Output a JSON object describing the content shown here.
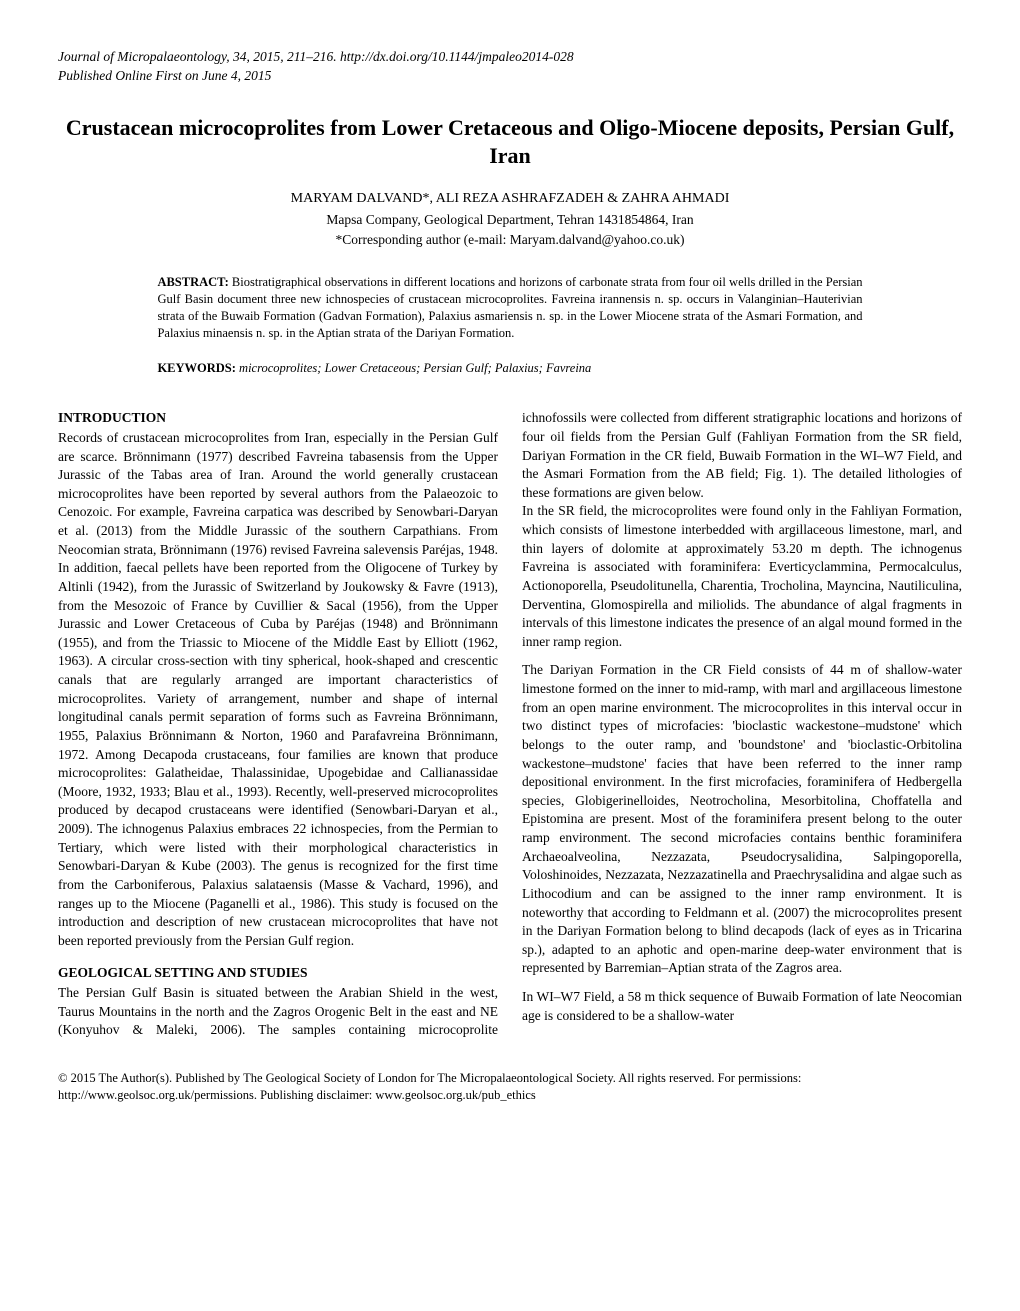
{
  "header": {
    "line1": "Journal of Micropalaeontology, 34, 2015, 211–216. http://dx.doi.org/10.1144/jmpaleo2014-028",
    "line2": "Published Online First on June 4, 2015"
  },
  "title": "Crustacean microcoprolites from Lower Cretaceous and Oligo-Miocene deposits, Persian Gulf, Iran",
  "authors": "MARYAM DALVAND*, ALI REZA ASHRAFZADEH & ZAHRA AHMADI",
  "affiliation": "Mapsa Company, Geological Department, Tehran 1431854864, Iran",
  "corresponding": "*Corresponding author (e-mail: Maryam.dalvand@yahoo.co.uk)",
  "abstract_label": "ABSTRACT:",
  "abstract_text": " Biostratigraphical observations in different locations and horizons of carbonate strata from four oil wells drilled in the Persian Gulf Basin document three new ichnospecies of crustacean microcoprolites. Favreina irannensis n. sp. occurs in Valanginian–Hauterivian strata of the Buwaib Formation (Gadvan Formation), Palaxius asmariensis n. sp. in the Lower Miocene strata of the Asmari Formation, and Palaxius minaensis n. sp. in the Aptian strata of the Dariyan Formation.",
  "keywords_label": "KEYWORDS:",
  "keywords_text": " microcoprolites; Lower Cretaceous; Persian Gulf; Palaxius; Favreina",
  "sections": {
    "intro_heading": "INTRODUCTION",
    "intro_body": "Records of crustacean microcoprolites from Iran, especially in the Persian Gulf are scarce. Brönnimann (1977) described Favreina tabasensis from the Upper Jurassic of the Tabas area of Iran. Around the world generally crustacean microcoprolites have been reported by several authors from the Palaeozoic to Cenozoic. For example, Favreina carpatica was described by Senowbari-Daryan et al. (2013) from the Middle Jurassic of the southern Carpathians. From Neocomian strata, Brönnimann (1976) revised Favreina salevensis Paréjas, 1948. In addition, faecal pellets have been reported from the Oligocene of Turkey by Altinli (1942), from the Jurassic of Switzerland by Joukowsky & Favre (1913), from the Mesozoic of France by Cuvillier & Sacal (1956), from the Upper Jurassic and Lower Cretaceous of Cuba by Paréjas (1948) and Brönnimann (1955), and from the Triassic to Miocene of the Middle East by Elliott (1962, 1963). A circular cross-section with tiny spherical, hook-shaped and crescentic canals that are regularly arranged are important characteristics of microcoprolites. Variety of arrangement, number and shape of internal longitudinal canals permit separation of forms such as Favreina Brönnimann, 1955, Palaxius Brönnimann & Norton, 1960 and Parafavreina Brönnimann, 1972. Among Decapoda crustaceans, four families are known that produce microcoprolites: Galatheidae, Thalassinidae, Upogebidae and Callianassidae (Moore, 1932, 1933; Blau et al., 1993). Recently, well-preserved microcoprolites produced by decapod crustaceans were identified (Senowbari-Daryan et al., 2009). The ichnogenus Palaxius embraces 22 ichnospecies, from the Permian to Tertiary, which were listed with their morphological characteristics in Senowbari-Daryan & Kube (2003). The genus is recognized for the first time from the Carboniferous, Palaxius salataensis (Masse & Vachard, 1996), and ranges up to the Miocene (Paganelli et al., 1986). This study is focused on the introduction and description of new crustacean microcoprolites that have not been reported previously from the Persian Gulf region.",
    "geo_heading": "GEOLOGICAL SETTING AND STUDIES",
    "geo_p1": "The Persian Gulf Basin is situated between the Arabian Shield in the west, Taurus Mountains in the north and the Zagros Orogenic Belt in the east and NE (Konyuhov & Maleki, 2006). The samples containing microcoprolite ichnofossils were collected from different stratigraphic locations and horizons of four oil fields from the Persian Gulf (Fahliyan Formation from the SR field, Dariyan Formation in the CR field, Buwaib Formation in the WI–W7 Field, and the Asmari Formation from the AB field; Fig. 1). The detailed lithologies of these formations are given below.",
    "geo_p2": "In the SR field, the microcoprolites were found only in the Fahliyan Formation, which consists of limestone interbedded with argillaceous limestone, marl, and thin layers of dolomite at approximately 53.20 m depth. The ichnogenus Favreina is associated with foraminifera: Everticyclammina, Permocalculus, Actionoporella, Pseudolitunella, Charentia, Trocholina, Mayncina, Nautiliculina, Derventina, Glomospirella and miliolids. The abundance of algal fragments in intervals of this limestone indicates the presence of an algal mound formed in the inner ramp region.",
    "geo_p3": "The Dariyan Formation in the CR Field consists of 44 m of shallow-water limestone formed on the inner to mid-ramp, with marl and argillaceous limestone from an open marine environment. The microcoprolites in this interval occur in two distinct types of microfacies: 'bioclastic wackestone–mudstone' which belongs to the outer ramp, and 'boundstone' and 'bioclastic-Orbitolina wackestone–mudstone' facies that have been referred to the inner ramp depositional environment. In the first microfacies, foraminifera of Hedbergella species, Globigerinelloides, Neotrocholina, Mesorbitolina, Choffatella and Epistomina are present. Most of the foraminifera present belong to the outer ramp environment. The second microfacies contains benthic foraminifera Archaeoalveolina, Nezzazata, Pseudocrysalidina, Salpingoporella, Voloshinoides, Nezzazata, Nezzazatinella and Praechrysalidina and algae such as Lithocodium and can be assigned to the inner ramp environment. It is noteworthy that according to Feldmann et al. (2007) the microcoprolites present in the Dariyan Formation belong to blind decapods (lack of eyes as in Tricarina sp.), adapted to an aphotic and open-marine deep-water environment that is represented by Barremian–Aptian strata of the Zagros area.",
    "geo_p4": "In WI–W7 Field, a 58 m thick sequence of Buwaib Formation of late Neocomian age is considered to be a shallow-water"
  },
  "footer": "© 2015 The Author(s). Published by The Geological Society of London for The Micropalaeontological Society. All rights reserved. For permissions: http://www.geolsoc.org.uk/permissions. Publishing disclaimer: www.geolsoc.org.uk/pub_ethics",
  "colors": {
    "text": "#000000",
    "background": "#ffffff"
  },
  "typography": {
    "body_fontsize_pt": 10,
    "title_fontsize_pt": 16,
    "abstract_fontsize_pt": 9
  }
}
